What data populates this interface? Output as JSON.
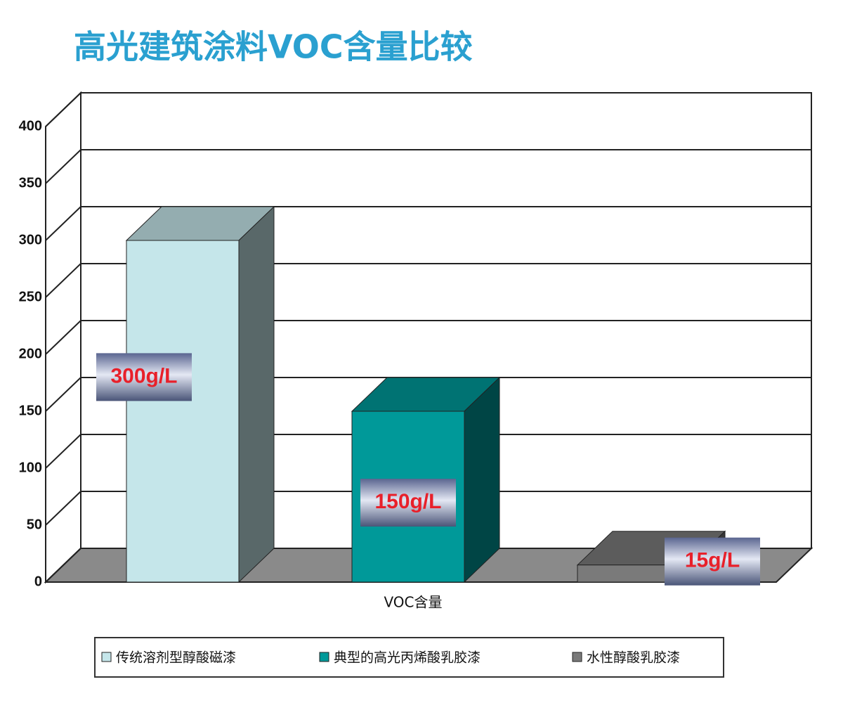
{
  "chart_data": {
    "type": "bar3d",
    "title": "高光建筑涂料VOC含量比较",
    "categories": [
      "VOC含量"
    ],
    "series": [
      {
        "name": "传统溶剂型醇酸磁漆",
        "color": "#c5e6ea",
        "values": [
          300
        ],
        "value_labels": [
          "300g/L"
        ]
      },
      {
        "name": "典型的高光丙烯酸乳胶漆",
        "color": "#009999",
        "values": [
          150
        ],
        "value_labels": [
          "150g/L"
        ]
      },
      {
        "name": "水性醇酸乳胶漆",
        "color": "#7a7a7a",
        "values": [
          15
        ],
        "value_labels": [
          "15g/L"
        ]
      }
    ],
    "ylim": [
      0,
      400
    ],
    "yticks": [
      0,
      50,
      100,
      150,
      200,
      250,
      300,
      350,
      400
    ],
    "grid": true,
    "legend": "bottom"
  }
}
